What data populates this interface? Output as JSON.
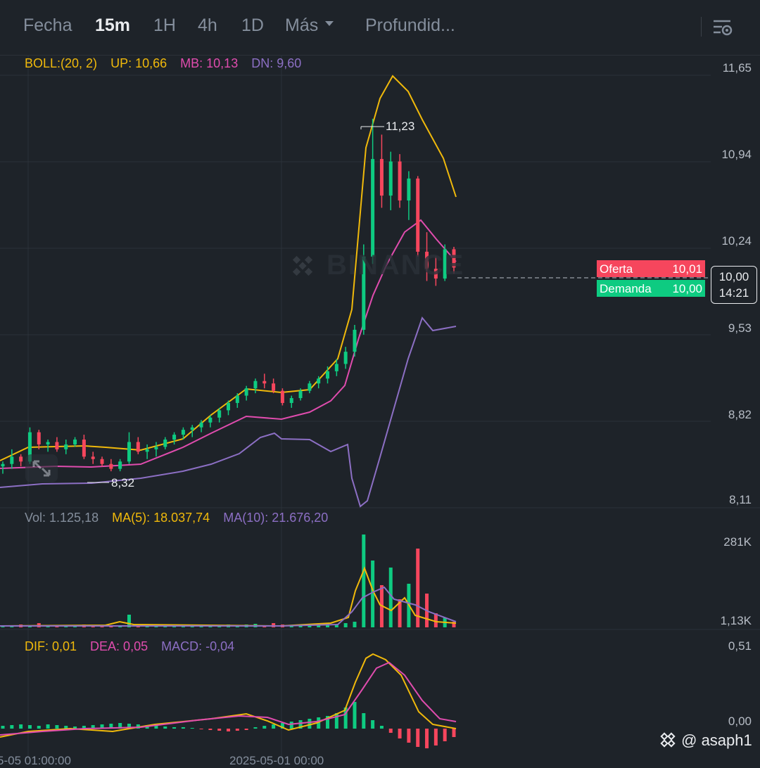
{
  "toolbar": {
    "tabs": [
      {
        "label": "Fecha"
      },
      {
        "label": "15m"
      },
      {
        "label": "1H"
      },
      {
        "label": "4h"
      },
      {
        "label": "1D"
      },
      {
        "label": "Más"
      },
      {
        "label": "Profundid..."
      }
    ],
    "active_tab": "15m",
    "settings_icon": "chart-settings-icon"
  },
  "boll": {
    "label": "BOLL:(20, 2)",
    "up": "UP: 10,66",
    "mb": "MB: 10,13",
    "dn": "DN: 9,60"
  },
  "price_axis": [
    "11,65",
    "10,94",
    "10,24",
    "9,53",
    "8,82",
    "8,11"
  ],
  "annotations": {
    "high": "11,23",
    "low": "8,32"
  },
  "watermark": "BINANCE",
  "order": {
    "ask_label": "Oferta",
    "ask_value": "10,01",
    "bid_label": "Demanda",
    "bid_value": "10,00"
  },
  "current": {
    "price": "10,00",
    "countdown": "14:21"
  },
  "volume": {
    "vol": "Vol: 1.125,18",
    "ma5": "MA(5): 18.037,74",
    "ma10": "MA(10): 21.676,20",
    "axis": [
      "281K",
      "1,13K"
    ]
  },
  "macd": {
    "dif": "DIF: 0,01",
    "dea": "DEA: 0,05",
    "macd": "MACD: -0,04",
    "axis": [
      "0,51",
      "0,00"
    ]
  },
  "time_axis": [
    "5-05 01:00:00",
    "2025-05-01 00:00"
  ],
  "attribution": "@ asaph1",
  "colors": {
    "bg": "#1e2329",
    "up": "#0ecb81",
    "down": "#f6465d",
    "boll_up": "#f0b90b",
    "boll_mb": "#e04cae",
    "boll_dn": "#8c6fc4"
  },
  "chart_data": {
    "type": "candlestick",
    "ylim": [
      8.11,
      11.65
    ],
    "candles": [
      [
        8.38,
        8.42,
        8.32,
        8.4
      ],
      [
        8.4,
        8.52,
        8.36,
        8.46
      ],
      [
        8.46,
        8.48,
        8.38,
        8.42
      ],
      [
        8.42,
        8.7,
        8.4,
        8.66
      ],
      [
        8.66,
        8.68,
        8.52,
        8.56
      ],
      [
        8.56,
        8.6,
        8.5,
        8.58
      ],
      [
        8.58,
        8.62,
        8.5,
        8.52
      ],
      [
        8.52,
        8.6,
        8.48,
        8.56
      ],
      [
        8.56,
        8.62,
        8.54,
        8.6
      ],
      [
        8.6,
        8.64,
        8.44,
        8.46
      ],
      [
        8.46,
        8.5,
        8.4,
        8.44
      ],
      [
        8.44,
        8.46,
        8.38,
        8.4
      ],
      [
        8.4,
        8.44,
        8.34,
        8.36
      ],
      [
        8.36,
        8.44,
        8.34,
        8.42
      ],
      [
        8.42,
        8.66,
        8.4,
        8.58
      ],
      [
        8.58,
        8.62,
        8.48,
        8.5
      ],
      [
        8.5,
        8.56,
        8.44,
        8.52
      ],
      [
        8.52,
        8.58,
        8.46,
        8.54
      ],
      [
        8.54,
        8.62,
        8.52,
        8.6
      ],
      [
        8.6,
        8.66,
        8.56,
        8.64
      ],
      [
        8.64,
        8.7,
        8.6,
        8.68
      ],
      [
        8.68,
        8.72,
        8.62,
        8.7
      ],
      [
        8.7,
        8.76,
        8.66,
        8.74
      ],
      [
        8.74,
        8.8,
        8.7,
        8.78
      ],
      [
        8.78,
        8.86,
        8.74,
        8.84
      ],
      [
        8.84,
        8.92,
        8.8,
        8.9
      ],
      [
        8.9,
        8.98,
        8.86,
        8.96
      ],
      [
        8.96,
        9.04,
        8.92,
        9.02
      ],
      [
        9.02,
        9.1,
        8.98,
        9.08
      ],
      [
        9.08,
        9.14,
        9.02,
        9.06
      ],
      [
        9.06,
        9.1,
        8.98,
        9.0
      ],
      [
        9.0,
        9.02,
        8.88,
        8.9
      ],
      [
        8.9,
        8.96,
        8.86,
        8.94
      ],
      [
        8.94,
        9.02,
        8.92,
        9.0
      ],
      [
        9.0,
        9.08,
        8.98,
        9.06
      ],
      [
        9.06,
        9.12,
        9.02,
        9.1
      ],
      [
        9.1,
        9.2,
        9.06,
        9.16
      ],
      [
        9.16,
        9.26,
        9.12,
        9.22
      ],
      [
        9.22,
        9.36,
        9.18,
        9.32
      ],
      [
        9.32,
        9.54,
        9.28,
        9.5
      ],
      [
        9.5,
        10.2,
        9.46,
        10.1
      ],
      [
        10.1,
        11.23,
        10.04,
        10.9
      ],
      [
        10.9,
        11.1,
        10.5,
        10.6
      ],
      [
        10.6,
        10.96,
        10.48,
        10.88
      ],
      [
        10.88,
        10.94,
        10.5,
        10.56
      ],
      [
        10.56,
        10.8,
        10.4,
        10.74
      ],
      [
        10.74,
        10.76,
        10.1,
        10.14
      ],
      [
        10.14,
        10.3,
        9.9,
        10.0
      ],
      [
        10.0,
        10.1,
        9.86,
        9.92
      ],
      [
        9.92,
        10.2,
        9.9,
        10.16
      ],
      [
        10.16,
        10.18,
        9.96,
        10.01
      ]
    ]
  }
}
